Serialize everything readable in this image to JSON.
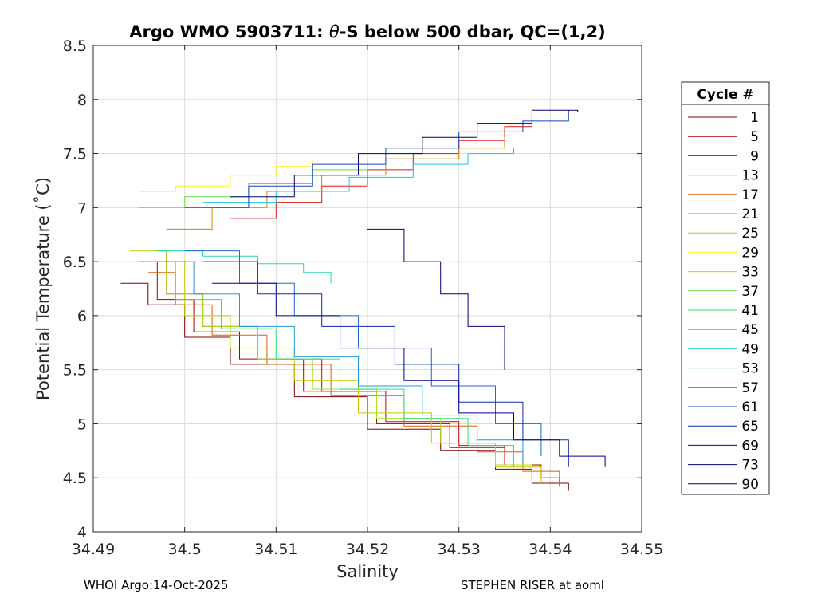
{
  "chart_data": {
    "type": "line",
    "title_prefix": "Argo WMO 5903711: ",
    "title_theta": "θ",
    "title_suffix": "-S below 500 dbar,  QC=(1,2)",
    "xlabel": "Salinity",
    "ylabel": "Potential Temperature (˚C)",
    "xlim": [
      34.49,
      34.55
    ],
    "ylim": [
      4,
      8.5
    ],
    "xticks": [
      34.49,
      34.5,
      34.51,
      34.52,
      34.53,
      34.54,
      34.55
    ],
    "xtick_labels": [
      "34.49",
      "34.5",
      "34.51",
      "34.52",
      "34.53",
      "34.54",
      "34.55"
    ],
    "yticks": [
      4,
      4.5,
      5,
      5.5,
      6,
      6.5,
      7,
      7.5,
      8,
      8.5
    ],
    "ytick_labels": [
      "4",
      "4.5",
      "5",
      "5.5",
      "6",
      "6.5",
      "7",
      "7.5",
      "8",
      "8.5"
    ],
    "grid": true,
    "legend": {
      "title": "Cycle #",
      "placement": "right-outside",
      "entries": [
        "1",
        "5",
        "9",
        "13",
        "17",
        "21",
        "25",
        "29",
        "33",
        "37",
        "41",
        "45",
        "49",
        "53",
        "57",
        "61",
        "65",
        "69",
        "73",
        "90"
      ]
    },
    "series": [
      {
        "name": "1",
        "color": "#800000",
        "x": [
          34.493,
          34.496,
          34.5,
          34.505,
          34.512,
          34.52,
          34.528,
          34.534,
          34.538,
          34.542
        ],
        "y": [
          6.3,
          6.1,
          5.8,
          5.55,
          5.25,
          4.95,
          4.75,
          4.58,
          4.45,
          4.38
        ]
      },
      {
        "name": "5",
        "color": "#a00000",
        "x": [
          34.495,
          34.497,
          34.501,
          34.506,
          34.513,
          34.521,
          34.529,
          34.535,
          34.539,
          34.541
        ],
        "y": [
          6.5,
          6.15,
          5.85,
          5.6,
          5.3,
          5.0,
          4.78,
          4.62,
          4.5,
          4.42
        ]
      },
      {
        "name": "9",
        "color": "#cc0000",
        "x": [
          34.497,
          34.498,
          34.502,
          34.508,
          34.515,
          34.522,
          34.53,
          34.535,
          34.538
        ],
        "y": [
          6.6,
          6.2,
          5.9,
          5.6,
          5.3,
          5.02,
          4.8,
          4.62,
          4.5
        ]
      },
      {
        "name": "13",
        "color": "#e01818",
        "x": [
          34.505,
          34.51,
          34.515,
          34.52,
          34.525,
          34.53,
          34.535,
          34.538
        ],
        "y": [
          6.9,
          7.05,
          7.2,
          7.35,
          7.5,
          7.62,
          7.75,
          7.8
        ]
      },
      {
        "name": "17",
        "color": "#e05a10",
        "x": [
          34.496,
          34.499,
          34.503,
          34.509,
          34.516,
          34.524,
          34.532,
          34.537,
          34.541
        ],
        "y": [
          6.4,
          6.1,
          5.82,
          5.55,
          5.26,
          4.98,
          4.74,
          4.56,
          4.42
        ]
      },
      {
        "name": "21",
        "color": "#c88a00",
        "x": [
          34.498,
          34.503,
          34.509,
          34.515,
          34.522,
          34.53,
          34.535
        ],
        "y": [
          6.8,
          7.0,
          7.15,
          7.3,
          7.45,
          7.55,
          7.65
        ]
      },
      {
        "name": "25",
        "color": "#c8c800",
        "x": [
          34.496,
          34.5,
          34.505,
          34.512,
          34.519,
          34.527,
          34.534,
          34.539
        ],
        "y": [
          6.5,
          6.0,
          5.7,
          5.4,
          5.1,
          4.82,
          4.6,
          4.45
        ]
      },
      {
        "name": "29",
        "color": "#f0f020",
        "x": [
          34.495,
          34.499,
          34.505,
          34.51,
          34.514
        ],
        "y": [
          7.15,
          7.2,
          7.3,
          7.38,
          7.45
        ]
      },
      {
        "name": "33",
        "color": "#a8e020",
        "x": [
          34.494,
          34.498,
          34.502,
          34.508,
          34.514,
          34.521,
          34.528,
          34.534,
          34.538
        ],
        "y": [
          6.6,
          6.2,
          5.9,
          5.6,
          5.32,
          5.05,
          4.82,
          4.62,
          4.48
        ]
      },
      {
        "name": "37",
        "color": "#60e040",
        "x": [
          34.495,
          34.5,
          34.507,
          34.514,
          34.52
        ],
        "y": [
          7.0,
          7.1,
          7.22,
          7.35,
          7.45
        ]
      },
      {
        "name": "41",
        "color": "#30e070",
        "x": [
          34.495,
          34.499,
          34.504,
          34.51,
          34.517,
          34.524,
          34.531,
          34.536
        ],
        "y": [
          6.5,
          6.15,
          5.88,
          5.6,
          5.32,
          5.05,
          4.8,
          4.6
        ]
      },
      {
        "name": "45",
        "color": "#20d8b0",
        "x": [
          34.497,
          34.502,
          34.508,
          34.513,
          34.516
        ],
        "y": [
          6.6,
          6.55,
          6.48,
          6.4,
          6.3
        ]
      },
      {
        "name": "49",
        "color": "#20c8e0",
        "x": [
          34.502,
          34.51,
          34.518,
          34.525,
          34.531,
          34.536
        ],
        "y": [
          7.05,
          7.15,
          7.28,
          7.4,
          7.5,
          7.55
        ]
      },
      {
        "name": "53",
        "color": "#2098e0",
        "x": [
          34.497,
          34.501,
          34.506,
          34.512,
          34.519,
          34.526,
          34.532,
          34.537
        ],
        "y": [
          6.5,
          6.2,
          5.9,
          5.62,
          5.35,
          5.08,
          4.85,
          4.65
        ]
      },
      {
        "name": "57",
        "color": "#2068d8",
        "x": [
          34.5,
          34.506,
          34.512,
          34.519,
          34.527,
          34.534,
          34.539
        ],
        "y": [
          6.6,
          6.3,
          6.0,
          5.7,
          5.35,
          5.0,
          4.7
        ]
      },
      {
        "name": "61",
        "color": "#1440c8",
        "x": [
          34.5,
          34.507,
          34.514,
          34.522,
          34.53,
          34.537,
          34.542
        ],
        "y": [
          7.0,
          7.2,
          7.4,
          7.55,
          7.7,
          7.8,
          7.9
        ]
      },
      {
        "name": "65",
        "color": "#0a28b0",
        "x": [
          34.502,
          34.508,
          34.515,
          34.523,
          34.53,
          34.537,
          34.542
        ],
        "y": [
          6.5,
          6.2,
          5.9,
          5.55,
          5.2,
          4.85,
          4.6
        ]
      },
      {
        "name": "69",
        "color": "#000099",
        "x": [
          34.503,
          34.51,
          34.517,
          34.524,
          34.53,
          34.536,
          34.541,
          34.546
        ],
        "y": [
          6.3,
          6.0,
          5.7,
          5.4,
          5.1,
          4.85,
          4.7,
          4.6
        ]
      },
      {
        "name": "73",
        "color": "#00007a",
        "x": [
          34.52,
          34.524,
          34.528,
          34.531,
          34.535
        ],
        "y": [
          6.8,
          6.5,
          6.2,
          5.9,
          5.5
        ]
      },
      {
        "name": "90",
        "color": "#000066",
        "x": [
          34.505,
          34.512,
          34.519,
          34.526,
          34.532,
          34.538,
          34.543
        ],
        "y": [
          7.1,
          7.3,
          7.5,
          7.65,
          7.78,
          7.9,
          7.88
        ]
      }
    ]
  },
  "footer": {
    "left": "WHOI Argo:14-Oct-2025",
    "right": "STEPHEN RISER at aoml"
  }
}
